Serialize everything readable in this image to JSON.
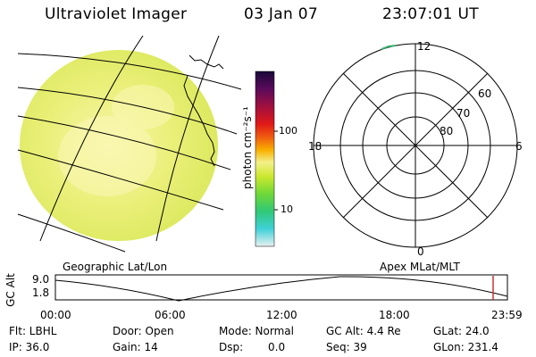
{
  "header": {
    "title": "Ultraviolet Imager",
    "date": "03 Jan 07",
    "time": "23:07:01 UT"
  },
  "colorbar": {
    "unit_label": "photon cm⁻²s⁻¹",
    "tick_100": "100",
    "tick_10": "10"
  },
  "polar": {
    "mlt_top": "12",
    "mlt_left": "18",
    "mlt_right": "6",
    "mlt_bottom": "0",
    "lat_60": "60",
    "lat_70": "70",
    "lat_80": "80"
  },
  "image_labels": {
    "left": "Geographic Lat/Lon",
    "right": "Apex MLat/MLT"
  },
  "timeline": {
    "ylabel": "GC Alt",
    "ytick_top": "9.0",
    "ytick_bottom": "1.8",
    "xticks": [
      "00:00",
      "06:00",
      "12:00",
      "18:00",
      "23:59"
    ]
  },
  "status": {
    "flt": "Flt: LBHL",
    "ip": "IP: 36.0",
    "door": "Door: Open",
    "gain": "Gain: 14",
    "mode": "Mode: Normal",
    "dsp_label": "Dsp:",
    "dsp_value": "0.0",
    "gc_alt": "GC Alt: 4.4 Re",
    "seq": "Seq: 39",
    "glat": "GLat: 24.0",
    "glon": "GLon: 231.4"
  },
  "colors": {
    "disk_base": "#e6ee6e",
    "disk_bright": "#f6f49a",
    "timeline_marker": "#cc3333"
  }
}
